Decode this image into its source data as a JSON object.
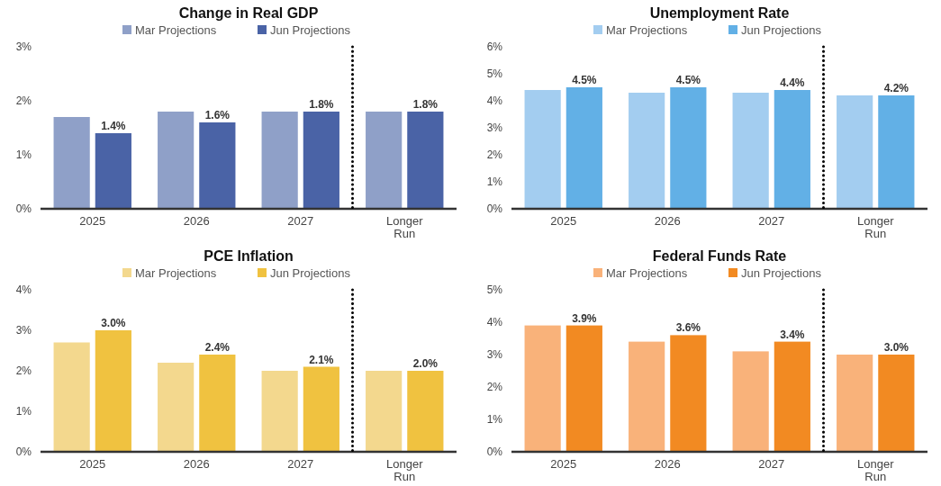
{
  "chart_data": [
    {
      "type": "bar",
      "title": "Change in Real GDP",
      "categories": [
        "2025",
        "2026",
        "2027",
        "Longer Run"
      ],
      "legend": "top",
      "ylim": [
        0,
        3
      ],
      "yticks": [
        {
          "value": 0,
          "label": "0%"
        },
        {
          "value": 1,
          "label": "1%"
        },
        {
          "value": 2,
          "label": "2%"
        },
        {
          "value": 3,
          "label": "3%"
        }
      ],
      "series": [
        {
          "name": "Mar Projections",
          "color": "#8fa0c8",
          "values": [
            1.7,
            1.8,
            1.8,
            1.8
          ]
        },
        {
          "name": "Jun Projections",
          "color": "#4a63a6",
          "values": [
            1.4,
            1.6,
            1.8,
            1.8
          ],
          "value_labels": [
            "1.4%",
            "1.6%",
            "1.8%",
            "1.8%"
          ]
        }
      ]
    },
    {
      "type": "bar",
      "title": "Unemployment Rate",
      "categories": [
        "2025",
        "2026",
        "2027",
        "Longer Run"
      ],
      "legend": "top",
      "ylim": [
        0,
        6
      ],
      "yticks": [
        {
          "value": 0,
          "label": "0%"
        },
        {
          "value": 1,
          "label": "1%"
        },
        {
          "value": 2,
          "label": "2%"
        },
        {
          "value": 3,
          "label": "3%"
        },
        {
          "value": 4,
          "label": "4%"
        },
        {
          "value": 5,
          "label": "5%"
        },
        {
          "value": 6,
          "label": "6%"
        }
      ],
      "series": [
        {
          "name": "Mar Projections",
          "color": "#a3cdf0",
          "values": [
            4.4,
            4.3,
            4.3,
            4.2
          ]
        },
        {
          "name": "Jun Projections",
          "color": "#62b0e6",
          "values": [
            4.5,
            4.5,
            4.4,
            4.2
          ],
          "value_labels": [
            "4.5%",
            "4.5%",
            "4.4%",
            "4.2%"
          ]
        }
      ]
    },
    {
      "type": "bar",
      "title": "PCE Inflation",
      "categories": [
        "2025",
        "2026",
        "2027",
        "Longer Run"
      ],
      "legend": "top",
      "ylim": [
        0,
        4
      ],
      "yticks": [
        {
          "value": 0,
          "label": "0%"
        },
        {
          "value": 1,
          "label": "1%"
        },
        {
          "value": 2,
          "label": "2%"
        },
        {
          "value": 3,
          "label": "3%"
        },
        {
          "value": 4,
          "label": "4%"
        }
      ],
      "series": [
        {
          "name": "Mar Projections",
          "color": "#f3d88e",
          "values": [
            2.7,
            2.2,
            2.0,
            2.0
          ]
        },
        {
          "name": "Jun Projections",
          "color": "#f0c240",
          "values": [
            3.0,
            2.4,
            2.1,
            2.0
          ],
          "value_labels": [
            "3.0%",
            "2.4%",
            "2.1%",
            "2.0%"
          ]
        }
      ]
    },
    {
      "type": "bar",
      "title": "Federal Funds Rate",
      "categories": [
        "2025",
        "2026",
        "2027",
        "Longer Run"
      ],
      "legend": "top",
      "ylim": [
        0,
        5
      ],
      "yticks": [
        {
          "value": 0,
          "label": "0%"
        },
        {
          "value": 1,
          "label": "1%"
        },
        {
          "value": 2,
          "label": "2%"
        },
        {
          "value": 3,
          "label": "3%"
        },
        {
          "value": 4,
          "label": "4%"
        },
        {
          "value": 5,
          "label": "5%"
        }
      ],
      "series": [
        {
          "name": "Mar Projections",
          "color": "#f9b27a",
          "values": [
            3.9,
            3.4,
            3.1,
            3.0
          ]
        },
        {
          "name": "Jun Projections",
          "color": "#f28a22",
          "values": [
            3.9,
            3.6,
            3.4,
            3.0
          ],
          "value_labels": [
            "3.9%",
            "3.6%",
            "3.4%",
            "3.0%"
          ]
        }
      ]
    }
  ]
}
